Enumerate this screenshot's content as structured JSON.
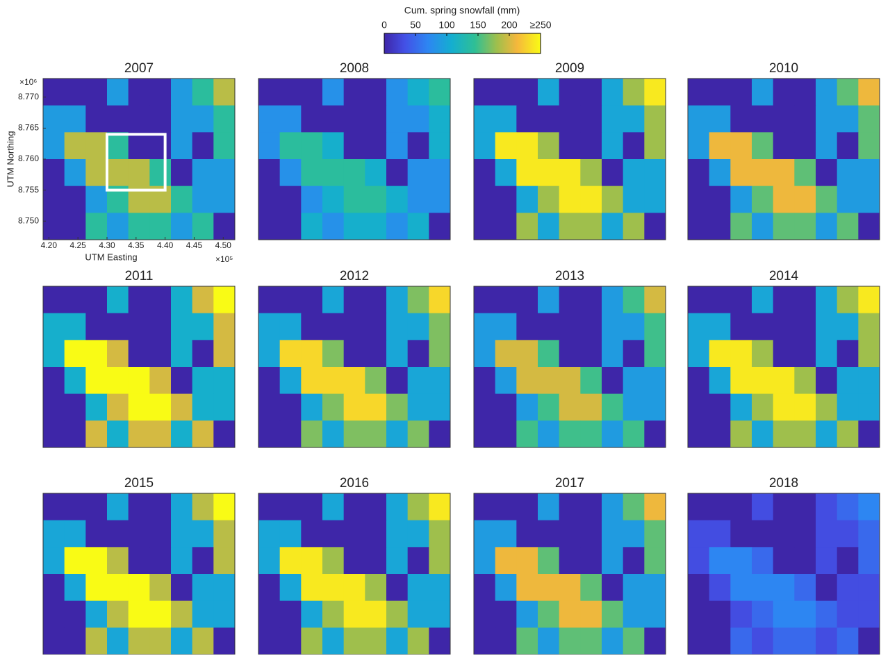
{
  "chart_data": {
    "type": "heatmap",
    "colorbar_label": "Cum. spring snowfall (mm)",
    "clim": [
      0,
      250
    ],
    "cticks": [
      0,
      50,
      100,
      150,
      200,
      {
        "value": 250,
        "label": "≥250"
      }
    ],
    "xlabel": "UTM Easting",
    "ylabel": "UTM Northing",
    "x_multiplier": "×10⁵",
    "y_multiplier": "×10⁶",
    "xlim": [
      4.19,
      4.52
    ],
    "ylim": [
      8.747,
      8.773
    ],
    "xticks": [
      {
        "value": 4.2,
        "label": "4.20"
      },
      4.25,
      {
        "value": 4.3,
        "label": "4.30"
      },
      4.35,
      {
        "value": 4.4,
        "label": "4.40"
      },
      4.45,
      {
        "value": 4.5,
        "label": "4.50"
      }
    ],
    "yticks": [
      {
        "value": 8.75,
        "label": "8.750"
      },
      8.755,
      {
        "value": 8.76,
        "label": "8.760"
      },
      8.765,
      {
        "value": 8.77,
        "label": "8.770"
      }
    ],
    "highlight_box": {
      "x": [
        4.3,
        4.4
      ],
      "y": [
        8.755,
        8.764
      ]
    },
    "panels": [
      {
        "title": "2007",
        "values": [
          [
            0,
            0,
            0,
            90,
            0,
            0,
            90,
            140,
            190
          ],
          [
            90,
            90,
            0,
            0,
            0,
            0,
            90,
            90,
            140
          ],
          [
            90,
            190,
            190,
            140,
            0,
            0,
            90,
            0,
            140
          ],
          [
            0,
            90,
            190,
            190,
            190,
            140,
            0,
            90,
            90
          ],
          [
            0,
            0,
            90,
            140,
            190,
            190,
            140,
            90,
            90
          ],
          [
            0,
            0,
            140,
            90,
            140,
            140,
            90,
            140,
            0
          ]
        ]
      },
      {
        "title": "2008",
        "values": [
          [
            0,
            0,
            0,
            80,
            0,
            0,
            80,
            110,
            140
          ],
          [
            80,
            80,
            0,
            0,
            0,
            0,
            80,
            80,
            110
          ],
          [
            80,
            140,
            140,
            110,
            0,
            0,
            80,
            0,
            110
          ],
          [
            0,
            80,
            140,
            140,
            140,
            110,
            0,
            80,
            80
          ],
          [
            0,
            0,
            80,
            110,
            140,
            140,
            110,
            80,
            80
          ],
          [
            0,
            0,
            110,
            80,
            110,
            110,
            80,
            110,
            0
          ]
        ]
      },
      {
        "title": "2009",
        "values": [
          [
            0,
            0,
            0,
            100,
            0,
            0,
            100,
            180,
            240
          ],
          [
            100,
            100,
            0,
            0,
            0,
            0,
            100,
            100,
            180
          ],
          [
            100,
            240,
            240,
            180,
            0,
            0,
            100,
            0,
            180
          ],
          [
            0,
            100,
            240,
            240,
            240,
            180,
            0,
            100,
            100
          ],
          [
            0,
            0,
            100,
            180,
            240,
            240,
            180,
            100,
            100
          ],
          [
            0,
            0,
            180,
            100,
            180,
            180,
            100,
            180,
            0
          ]
        ]
      },
      {
        "title": "2010",
        "values": [
          [
            0,
            0,
            0,
            90,
            0,
            0,
            90,
            160,
            210
          ],
          [
            90,
            90,
            0,
            0,
            0,
            0,
            90,
            90,
            160
          ],
          [
            90,
            210,
            210,
            160,
            0,
            0,
            90,
            0,
            160
          ],
          [
            0,
            90,
            210,
            210,
            210,
            160,
            0,
            90,
            90
          ],
          [
            0,
            0,
            90,
            160,
            210,
            210,
            160,
            90,
            90
          ],
          [
            0,
            0,
            160,
            90,
            160,
            160,
            90,
            160,
            0
          ]
        ]
      },
      {
        "title": "2011",
        "values": [
          [
            0,
            0,
            0,
            110,
            0,
            0,
            110,
            200,
            260
          ],
          [
            110,
            110,
            0,
            0,
            0,
            0,
            110,
            110,
            200
          ],
          [
            110,
            260,
            260,
            200,
            0,
            0,
            110,
            0,
            200
          ],
          [
            0,
            110,
            260,
            260,
            260,
            200,
            0,
            110,
            110
          ],
          [
            0,
            0,
            110,
            200,
            260,
            260,
            200,
            110,
            110
          ],
          [
            0,
            0,
            200,
            110,
            200,
            200,
            110,
            200,
            0
          ]
        ]
      },
      {
        "title": "2012",
        "values": [
          [
            0,
            0,
            0,
            100,
            0,
            0,
            100,
            170,
            230
          ],
          [
            100,
            100,
            0,
            0,
            0,
            0,
            100,
            100,
            170
          ],
          [
            100,
            230,
            230,
            170,
            0,
            0,
            100,
            0,
            170
          ],
          [
            0,
            100,
            230,
            230,
            230,
            170,
            0,
            100,
            100
          ],
          [
            0,
            0,
            100,
            170,
            230,
            230,
            170,
            100,
            100
          ],
          [
            0,
            0,
            170,
            100,
            170,
            170,
            100,
            170,
            0
          ]
        ]
      },
      {
        "title": "2013",
        "values": [
          [
            0,
            0,
            0,
            90,
            0,
            0,
            90,
            150,
            200
          ],
          [
            90,
            90,
            0,
            0,
            0,
            0,
            90,
            90,
            150
          ],
          [
            90,
            200,
            200,
            150,
            0,
            0,
            90,
            0,
            150
          ],
          [
            0,
            90,
            200,
            200,
            200,
            150,
            0,
            90,
            90
          ],
          [
            0,
            0,
            90,
            150,
            200,
            200,
            150,
            90,
            90
          ],
          [
            0,
            0,
            150,
            90,
            150,
            150,
            90,
            150,
            0
          ]
        ]
      },
      {
        "title": "2014",
        "values": [
          [
            0,
            0,
            0,
            100,
            0,
            0,
            100,
            180,
            240
          ],
          [
            100,
            100,
            0,
            0,
            0,
            0,
            100,
            100,
            180
          ],
          [
            100,
            240,
            240,
            180,
            0,
            0,
            100,
            0,
            180
          ],
          [
            0,
            100,
            240,
            240,
            240,
            180,
            0,
            100,
            100
          ],
          [
            0,
            0,
            100,
            180,
            240,
            240,
            180,
            100,
            100
          ],
          [
            0,
            0,
            180,
            100,
            180,
            180,
            100,
            180,
            0
          ]
        ]
      },
      {
        "title": "2015",
        "values": [
          [
            0,
            0,
            0,
            100,
            0,
            0,
            100,
            190,
            250
          ],
          [
            100,
            100,
            0,
            0,
            0,
            0,
            100,
            100,
            190
          ],
          [
            100,
            250,
            250,
            190,
            0,
            0,
            100,
            0,
            190
          ],
          [
            0,
            100,
            250,
            250,
            250,
            190,
            0,
            100,
            100
          ],
          [
            0,
            0,
            100,
            190,
            250,
            250,
            190,
            100,
            100
          ],
          [
            0,
            0,
            190,
            100,
            190,
            190,
            100,
            190,
            0
          ]
        ]
      },
      {
        "title": "2016",
        "values": [
          [
            0,
            0,
            0,
            100,
            0,
            0,
            100,
            180,
            240
          ],
          [
            100,
            100,
            0,
            0,
            0,
            0,
            100,
            100,
            180
          ],
          [
            100,
            240,
            240,
            180,
            0,
            0,
            100,
            0,
            180
          ],
          [
            0,
            100,
            240,
            240,
            240,
            180,
            0,
            100,
            100
          ],
          [
            0,
            0,
            100,
            180,
            240,
            240,
            180,
            100,
            100
          ],
          [
            0,
            0,
            180,
            100,
            180,
            180,
            100,
            180,
            0
          ]
        ]
      },
      {
        "title": "2017",
        "values": [
          [
            0,
            0,
            0,
            90,
            0,
            0,
            90,
            160,
            210
          ],
          [
            90,
            90,
            0,
            0,
            0,
            0,
            90,
            90,
            160
          ],
          [
            90,
            210,
            210,
            160,
            0,
            0,
            90,
            0,
            160
          ],
          [
            0,
            90,
            210,
            210,
            210,
            160,
            0,
            90,
            90
          ],
          [
            0,
            0,
            90,
            160,
            210,
            210,
            160,
            90,
            90
          ],
          [
            0,
            0,
            160,
            90,
            160,
            160,
            90,
            160,
            0
          ]
        ]
      },
      {
        "title": "2018",
        "values": [
          [
            0,
            0,
            0,
            30,
            0,
            0,
            30,
            50,
            70
          ],
          [
            30,
            30,
            0,
            0,
            0,
            0,
            30,
            30,
            50
          ],
          [
            30,
            70,
            70,
            50,
            0,
            0,
            30,
            0,
            50
          ],
          [
            0,
            30,
            70,
            70,
            70,
            50,
            0,
            30,
            30
          ],
          [
            0,
            0,
            30,
            50,
            70,
            70,
            50,
            30,
            30
          ],
          [
            0,
            0,
            50,
            30,
            50,
            50,
            30,
            50,
            0
          ]
        ]
      }
    ]
  }
}
